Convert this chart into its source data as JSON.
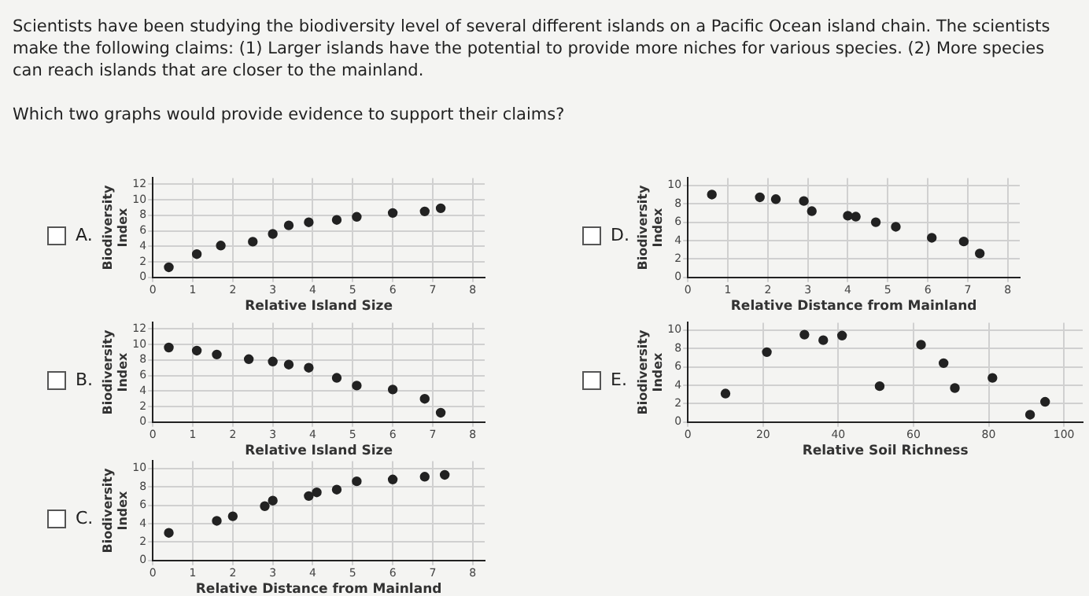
{
  "chart_data": [
    {
      "type": "scatter",
      "xlabel": "Relative Island Size",
      "ylabel": "Biodiversity Index",
      "annotations": [
        "Scientists have been studying the biodiversity level of several different islands on a Pacific Ocean island chain. The scientists make the following claims: (1) Larger islands have the potential to provide more niches for various species. (2) More species can reach islands that are closer to the mainland.",
        "Which two graphs would provide evidence to support their claims?",
        "A."
      ],
      "xlim": [
        0,
        8.3
      ],
      "xticks": [
        0,
        1,
        2,
        3,
        4,
        5,
        6,
        7,
        8
      ],
      "ylim": [
        0,
        12.8
      ],
      "yticks": [
        0,
        2,
        4,
        6,
        8,
        10,
        12
      ],
      "grid": true,
      "marker": "circle",
      "series": [
        {
          "color": "#222222",
          "x": [
            0.4,
            1.1,
            1.7,
            2.5,
            3.0,
            3.4,
            3.9,
            4.6,
            5.1,
            6.0,
            6.8,
            7.2
          ],
          "values": [
            1.3,
            3.0,
            4.1,
            4.6,
            5.6,
            6.7,
            7.1,
            7.4,
            7.8,
            8.3,
            8.5,
            8.9
          ]
        }
      ]
    },
    {
      "type": "scatter",
      "xlabel": "Relative Distance from Mainland",
      "ylabel": "Biodiversity Index",
      "annotations": [
        "D."
      ],
      "xlim": [
        0,
        8.3
      ],
      "xticks": [
        0,
        1,
        2,
        3,
        4,
        5,
        6,
        7,
        8
      ],
      "ylim": [
        0,
        10.8
      ],
      "yticks": [
        0,
        2,
        4,
        6,
        8,
        10
      ],
      "grid": true,
      "marker": "circle",
      "series": [
        {
          "color": "#222222",
          "x": [
            0.6,
            1.8,
            2.2,
            2.9,
            3.1,
            4.0,
            4.2,
            4.7,
            5.2,
            6.1,
            6.9,
            7.3
          ],
          "values": [
            9.0,
            8.7,
            8.5,
            8.3,
            7.2,
            6.7,
            6.6,
            6.0,
            5.5,
            4.3,
            3.9,
            2.6
          ]
        }
      ]
    },
    {
      "type": "scatter",
      "xlabel": "Relative Island Size",
      "ylabel": "Biodiversity Index",
      "annotations": [
        "B."
      ],
      "xlim": [
        0,
        8.3
      ],
      "xticks": [
        0,
        1,
        2,
        3,
        4,
        5,
        6,
        7,
        8
      ],
      "ylim": [
        0,
        12.8
      ],
      "yticks": [
        0,
        2,
        4,
        6,
        8,
        10,
        12
      ],
      "grid": true,
      "marker": "circle",
      "series": [
        {
          "color": "#222222",
          "x": [
            0.4,
            1.1,
            1.6,
            2.4,
            3.0,
            3.4,
            3.9,
            4.6,
            5.1,
            6.0,
            6.8,
            7.2
          ],
          "values": [
            9.6,
            9.2,
            8.7,
            8.1,
            7.8,
            7.4,
            7.0,
            5.7,
            4.7,
            4.2,
            3.0,
            1.2
          ]
        }
      ]
    },
    {
      "type": "scatter",
      "xlabel": "Relative Soil Richness",
      "ylabel": "Biodiversity Index",
      "annotations": [
        "E."
      ],
      "xlim": [
        0,
        105
      ],
      "xticks": [
        0,
        20,
        40,
        60,
        80,
        100
      ],
      "ylim": [
        0,
        10.8
      ],
      "yticks": [
        0,
        2,
        4,
        6,
        8,
        10
      ],
      "grid": true,
      "marker": "circle",
      "series": [
        {
          "color": "#222222",
          "x": [
            10,
            21,
            31,
            36,
            41,
            51,
            62,
            68,
            71,
            81,
            91,
            95
          ],
          "values": [
            3.1,
            7.6,
            9.5,
            8.9,
            9.4,
            3.9,
            8.4,
            6.4,
            3.7,
            4.8,
            0.8,
            2.2
          ]
        }
      ]
    },
    {
      "type": "scatter",
      "xlabel": "Relative Distance from Mainland",
      "ylabel": "Biodiversity Index",
      "annotations": [
        "C."
      ],
      "xlim": [
        0,
        8.3
      ],
      "xticks": [
        0,
        1,
        2,
        3,
        4,
        5,
        6,
        7,
        8
      ],
      "ylim": [
        0,
        10.8
      ],
      "yticks": [
        0,
        2,
        4,
        6,
        8,
        10
      ],
      "grid": true,
      "marker": "circle",
      "series": [
        {
          "color": "#222222",
          "x": [
            0.4,
            1.6,
            2.0,
            2.8,
            3.0,
            3.9,
            4.1,
            4.6,
            5.1,
            6.0,
            6.8,
            7.3
          ],
          "values": [
            3.0,
            4.3,
            4.8,
            5.9,
            6.5,
            7.0,
            7.4,
            7.7,
            8.6,
            8.8,
            9.1,
            9.3
          ]
        }
      ]
    }
  ]
}
